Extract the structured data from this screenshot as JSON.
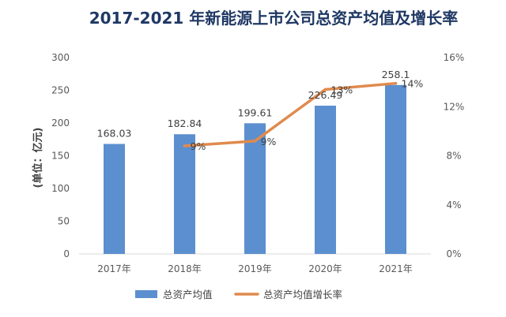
{
  "chart_data": {
    "type": "bar",
    "title": "2017-2021 年新能源上市公司总资产均值及增长率",
    "ylabel": "(单位：亿元)",
    "categories": [
      "2017年",
      "2018年",
      "2019年",
      "2020年",
      "2021年"
    ],
    "ylim": [
      0,
      300
    ],
    "yticks": [
      "0",
      "50",
      "100",
      "150",
      "200",
      "250",
      "300"
    ],
    "y2lim": [
      0,
      16
    ],
    "y2ticks": [
      "0%",
      "4%",
      "8%",
      "12%",
      "16%"
    ],
    "grid": false,
    "legend_position": "bottom",
    "series": [
      {
        "name": "总资产均值",
        "type": "bar",
        "axis": "left",
        "color": "#5b8fcf",
        "values": [
          168.03,
          182.84,
          199.61,
          226.49,
          258.1
        ],
        "labels": [
          "168.03",
          "182.84",
          "199.61",
          "226.49",
          "258.1"
        ]
      },
      {
        "name": "总资产均值增长率",
        "type": "line",
        "axis": "right",
        "color": "#e08a4e",
        "values": [
          null,
          8.8,
          9.2,
          13.4,
          13.9
        ],
        "labels": [
          "",
          "9%",
          "9%",
          "13%",
          "14%"
        ]
      }
    ]
  }
}
